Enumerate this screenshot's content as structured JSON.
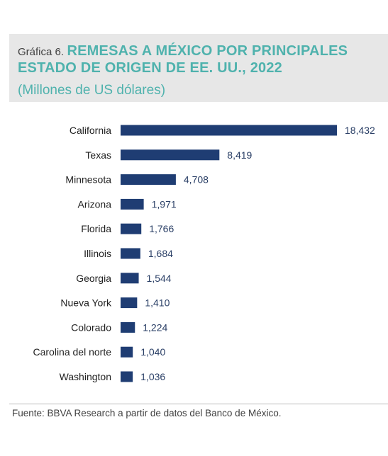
{
  "header": {
    "figure_label": "Gráfica 6.",
    "title_line1": "REMESAS A MÉXICO POR PRINCIPALES",
    "title_line2": "ESTADO DE ORIGEN DE EE. UU., 2022",
    "subtitle": "(Millones de US dólares)"
  },
  "source": "Fuente: BBVA Research a partir de datos del Banco de México.",
  "colors": {
    "bar": "#1f3d73",
    "title": "#4fb2ad",
    "header_bg": "#e7e7e7"
  },
  "chart_data": {
    "type": "bar",
    "orientation": "horizontal",
    "categories": [
      "California",
      "Texas",
      "Minnesota",
      "Arizona",
      "Florida",
      "Illinois",
      "Georgia",
      "Nueva York",
      "Colorado",
      "Carolina del norte",
      "Washington"
    ],
    "values": [
      18432,
      8419,
      4708,
      1971,
      1766,
      1684,
      1544,
      1410,
      1224,
      1040,
      1036
    ],
    "value_labels": [
      "18,432",
      "8,419",
      "4,708",
      "1,971",
      "1,766",
      "1,684",
      "1,544",
      "1,410",
      "1,224",
      "1,040",
      "1,036"
    ],
    "xlim": [
      0,
      18432
    ],
    "grid": false,
    "legend": "none"
  }
}
